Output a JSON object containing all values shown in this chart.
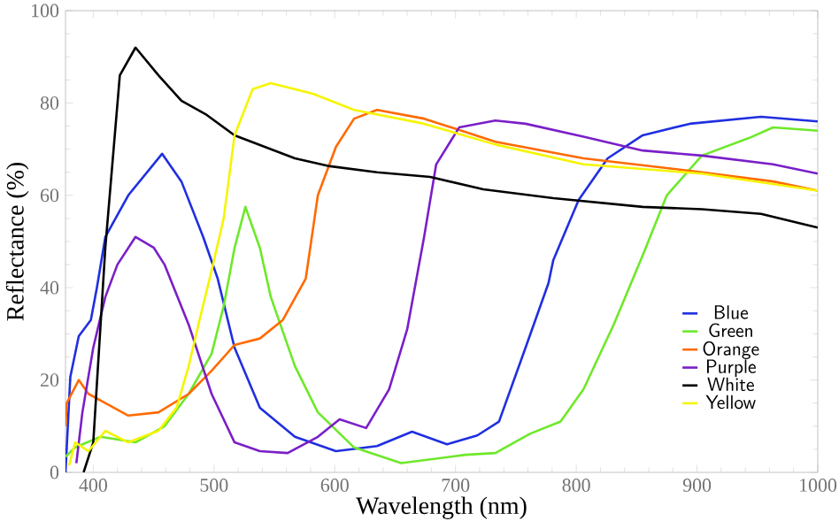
{
  "chart_data": {
    "type": "line",
    "xlabel": "Wavelength (nm)",
    "ylabel": "Reflectance (%)",
    "xlim": [
      377,
      1000
    ],
    "ylim": [
      0,
      100
    ],
    "xticks": [
      400,
      500,
      600,
      700,
      800,
      900,
      1000
    ],
    "yticks": [
      0,
      20,
      40,
      60,
      80,
      100
    ],
    "grid": false,
    "legend": "bottom right",
    "series": [
      {
        "name": "Blue",
        "color": "#1f2fe0",
        "x": [
          377,
          381,
          388,
          398,
          403,
          410,
          429,
          457,
          473,
          491,
          503,
          517,
          538,
          567,
          601,
          635,
          664,
          693,
          718,
          736,
          758,
          777,
          781,
          802,
          826,
          855,
          894,
          953,
          1000
        ],
        "values": [
          0,
          20.7,
          29.5,
          33,
          40,
          51,
          60,
          69,
          63,
          51,
          42,
          27,
          14,
          7.7,
          4.6,
          5.7,
          8.8,
          6.1,
          8,
          11,
          27,
          41,
          46,
          59,
          68,
          73,
          75.5,
          77,
          76
        ]
      },
      {
        "name": "Green",
        "color": "#6ee82a",
        "x": [
          377,
          385,
          406,
          435,
          459,
          479,
          498,
          508,
          517,
          526,
          538,
          547,
          567,
          586,
          616,
          655,
          708,
          733,
          762,
          787,
          806,
          831,
          855,
          875,
          904,
          943,
          963,
          1000
        ],
        "values": [
          3.4,
          5.4,
          7.7,
          6.5,
          10,
          17,
          25.7,
          36,
          48.6,
          57.5,
          48.6,
          38,
          23,
          13,
          5.4,
          2,
          3.8,
          4.2,
          8.4,
          11,
          18,
          32,
          47,
          60,
          68.6,
          72.4,
          74.7,
          74
        ]
      },
      {
        "name": "Orange",
        "color": "#ff6a00",
        "x": [
          377,
          378,
          388,
          396,
          410,
          429,
          454,
          479,
          498,
          517,
          538,
          557,
          576,
          586,
          601,
          616,
          635,
          674,
          733,
          806,
          904,
          963,
          1000
        ],
        "values": [
          10,
          15,
          20,
          17,
          15,
          12.3,
          13,
          17,
          22,
          27.6,
          29,
          33,
          42,
          60,
          70.5,
          76.6,
          78.5,
          76.6,
          71.6,
          68,
          65,
          63,
          61
        ]
      },
      {
        "name": "Purple",
        "color": "#7a1fc8",
        "x": [
          386,
          391,
          400,
          410,
          420,
          435,
          450,
          459,
          479,
          498,
          517,
          538,
          561,
          586,
          604,
          626,
          645,
          660,
          674,
          684,
          703,
          733,
          758,
          806,
          855,
          904,
          963,
          1000
        ],
        "values": [
          2,
          13,
          27,
          38,
          45,
          51,
          48.7,
          45,
          32,
          17,
          6.5,
          4.6,
          4.2,
          7.7,
          11.5,
          9.6,
          18,
          31,
          51,
          66.7,
          74.7,
          76.2,
          75.5,
          72.7,
          69.7,
          68.6,
          66.7,
          64.7
        ]
      },
      {
        "name": "White",
        "color": "#000000",
        "x": [
          392,
          400,
          410,
          422,
          435,
          454,
          473,
          494,
          517,
          567,
          596,
          635,
          679,
          723,
          781,
          855,
          904,
          953,
          1000
        ],
        "values": [
          0,
          6.5,
          48.7,
          86,
          92,
          86,
          80.5,
          77.4,
          73,
          68,
          66.3,
          65,
          64,
          61.3,
          59.4,
          57.5,
          57,
          56,
          53
        ]
      },
      {
        "name": "Yellow",
        "color": "#f5f500",
        "x": [
          380,
          385,
          396,
          410,
          429,
          454,
          469,
          479,
          488,
          498,
          508,
          517,
          532,
          547,
          582,
          616,
          674,
          733,
          806,
          904,
          1000
        ],
        "values": [
          1.5,
          6.5,
          4.6,
          9,
          6.5,
          9,
          14,
          23,
          33,
          43.7,
          55,
          73,
          83,
          84.3,
          82,
          78.5,
          75.5,
          71,
          66.7,
          64.7,
          61
        ]
      }
    ]
  }
}
